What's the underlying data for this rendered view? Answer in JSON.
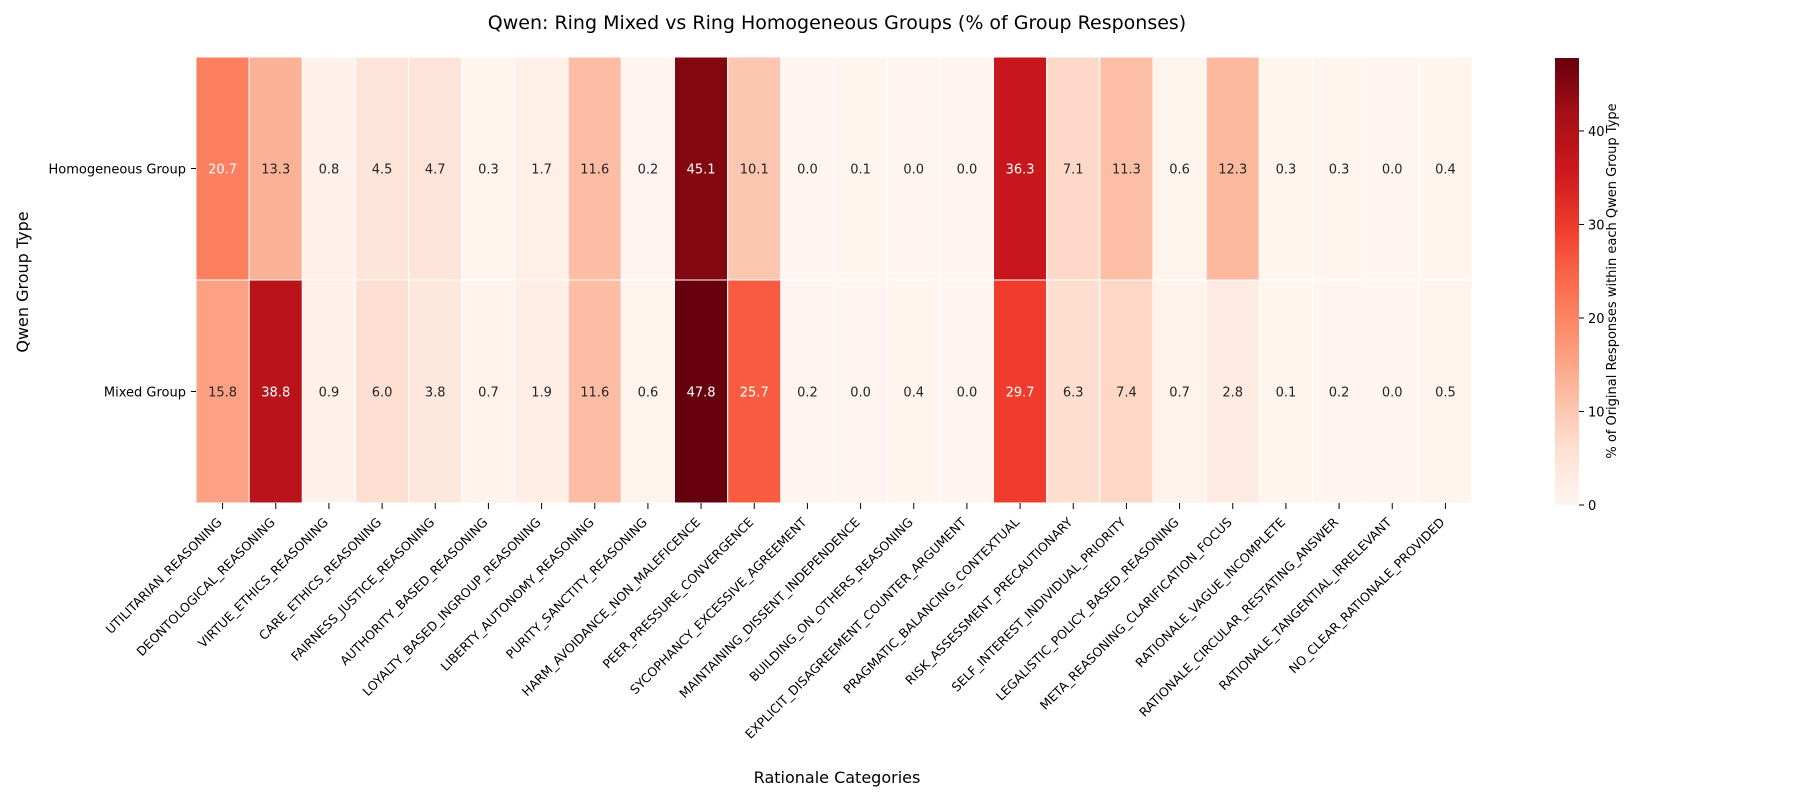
{
  "chart_data": {
    "type": "heatmap",
    "title": "Qwen: Ring Mixed vs Ring Homogeneous Groups (% of Group Responses)",
    "xlabel": "Rationale Categories",
    "ylabel": "Qwen Group Type",
    "colorbar_label": "% of Original Responses within each Qwen Group Type",
    "colormap": "Reds",
    "color_range": [
      0,
      47.8
    ],
    "colorbar_ticks": [
      0,
      10,
      20,
      30,
      40
    ],
    "rows": [
      "Homogeneous Group",
      "Mixed Group"
    ],
    "columns": [
      "UTILITARIAN_REASONING",
      "DEONTOLOGICAL_REASONING",
      "VIRTUE_ETHICS_REASONING",
      "CARE_ETHICS_REASONING",
      "FAIRNESS_JUSTICE_REASONING",
      "AUTHORITY_BASED_REASONING",
      "LOYALTY_BASED_INGROUP_REASONING",
      "LIBERTY_AUTONOMY_REASONING",
      "PURITY_SANCTITY_REASONING",
      "HARM_AVOIDANCE_NON_MALEFICENCE",
      "PEER_PRESSURE_CONVERGENCE",
      "SYCOPHANCY_EXCESSIVE_AGREEMENT",
      "MAINTAINING_DISSENT_INDEPENDENCE",
      "BUILDING_ON_OTHERS_REASONING",
      "EXPLICIT_DISAGREEMENT_COUNTER_ARGUMENT",
      "PRAGMATIC_BALANCING_CONTEXTUAL",
      "RISK_ASSESSMENT_PRECAUTIONARY",
      "SELF_INTEREST_INDIVIDUAL_PRIORITY",
      "LEGALISTIC_POLICY_BASED_REASONING",
      "META_REASONING_CLARIFICATION_FOCUS",
      "RATIONALE_VAGUE_INCOMPLETE",
      "RATIONALE_CIRCULAR_RESTATING_ANSWER",
      "RATIONALE_TANGENTIAL_IRRELEVANT",
      "NO_CLEAR_RATIONALE_PROVIDED"
    ],
    "values": [
      [
        20.7,
        13.3,
        0.8,
        4.5,
        4.7,
        0.3,
        1.7,
        11.6,
        0.2,
        45.1,
        10.1,
        0.0,
        0.1,
        0.0,
        0.0,
        36.3,
        7.1,
        11.3,
        0.6,
        12.3,
        0.3,
        0.3,
        0.0,
        0.4
      ],
      [
        15.8,
        38.8,
        0.9,
        6.0,
        3.8,
        0.7,
        1.9,
        11.6,
        0.6,
        47.8,
        25.7,
        0.2,
        0.0,
        0.4,
        0.0,
        29.7,
        6.3,
        7.4,
        0.7,
        2.8,
        0.1,
        0.2,
        0.0,
        0.5
      ]
    ],
    "value_labels": [
      [
        "20.7",
        "13.3",
        "0.8",
        "4.5",
        "4.7",
        "0.3",
        "1.7",
        "11.6",
        "0.2",
        "45.1",
        "10.1",
        "0.0",
        "0.1",
        "0.0",
        "0.0",
        "36.3",
        "7.1",
        "11.3",
        "0.6",
        "12.3",
        "0.3",
        "0.3",
        "0.0",
        "0.4"
      ],
      [
        "15.8",
        "38.8",
        "0.9",
        "6.0",
        "3.8",
        "0.7",
        "1.9",
        "11.6",
        "0.6",
        "47.8",
        "25.7",
        "0.2",
        "0.0",
        "0.4",
        "0.0",
        "29.7",
        "6.3",
        "7.4",
        "0.7",
        "2.8",
        "0.1",
        "0.2",
        "0.0",
        "0.5"
      ]
    ]
  }
}
